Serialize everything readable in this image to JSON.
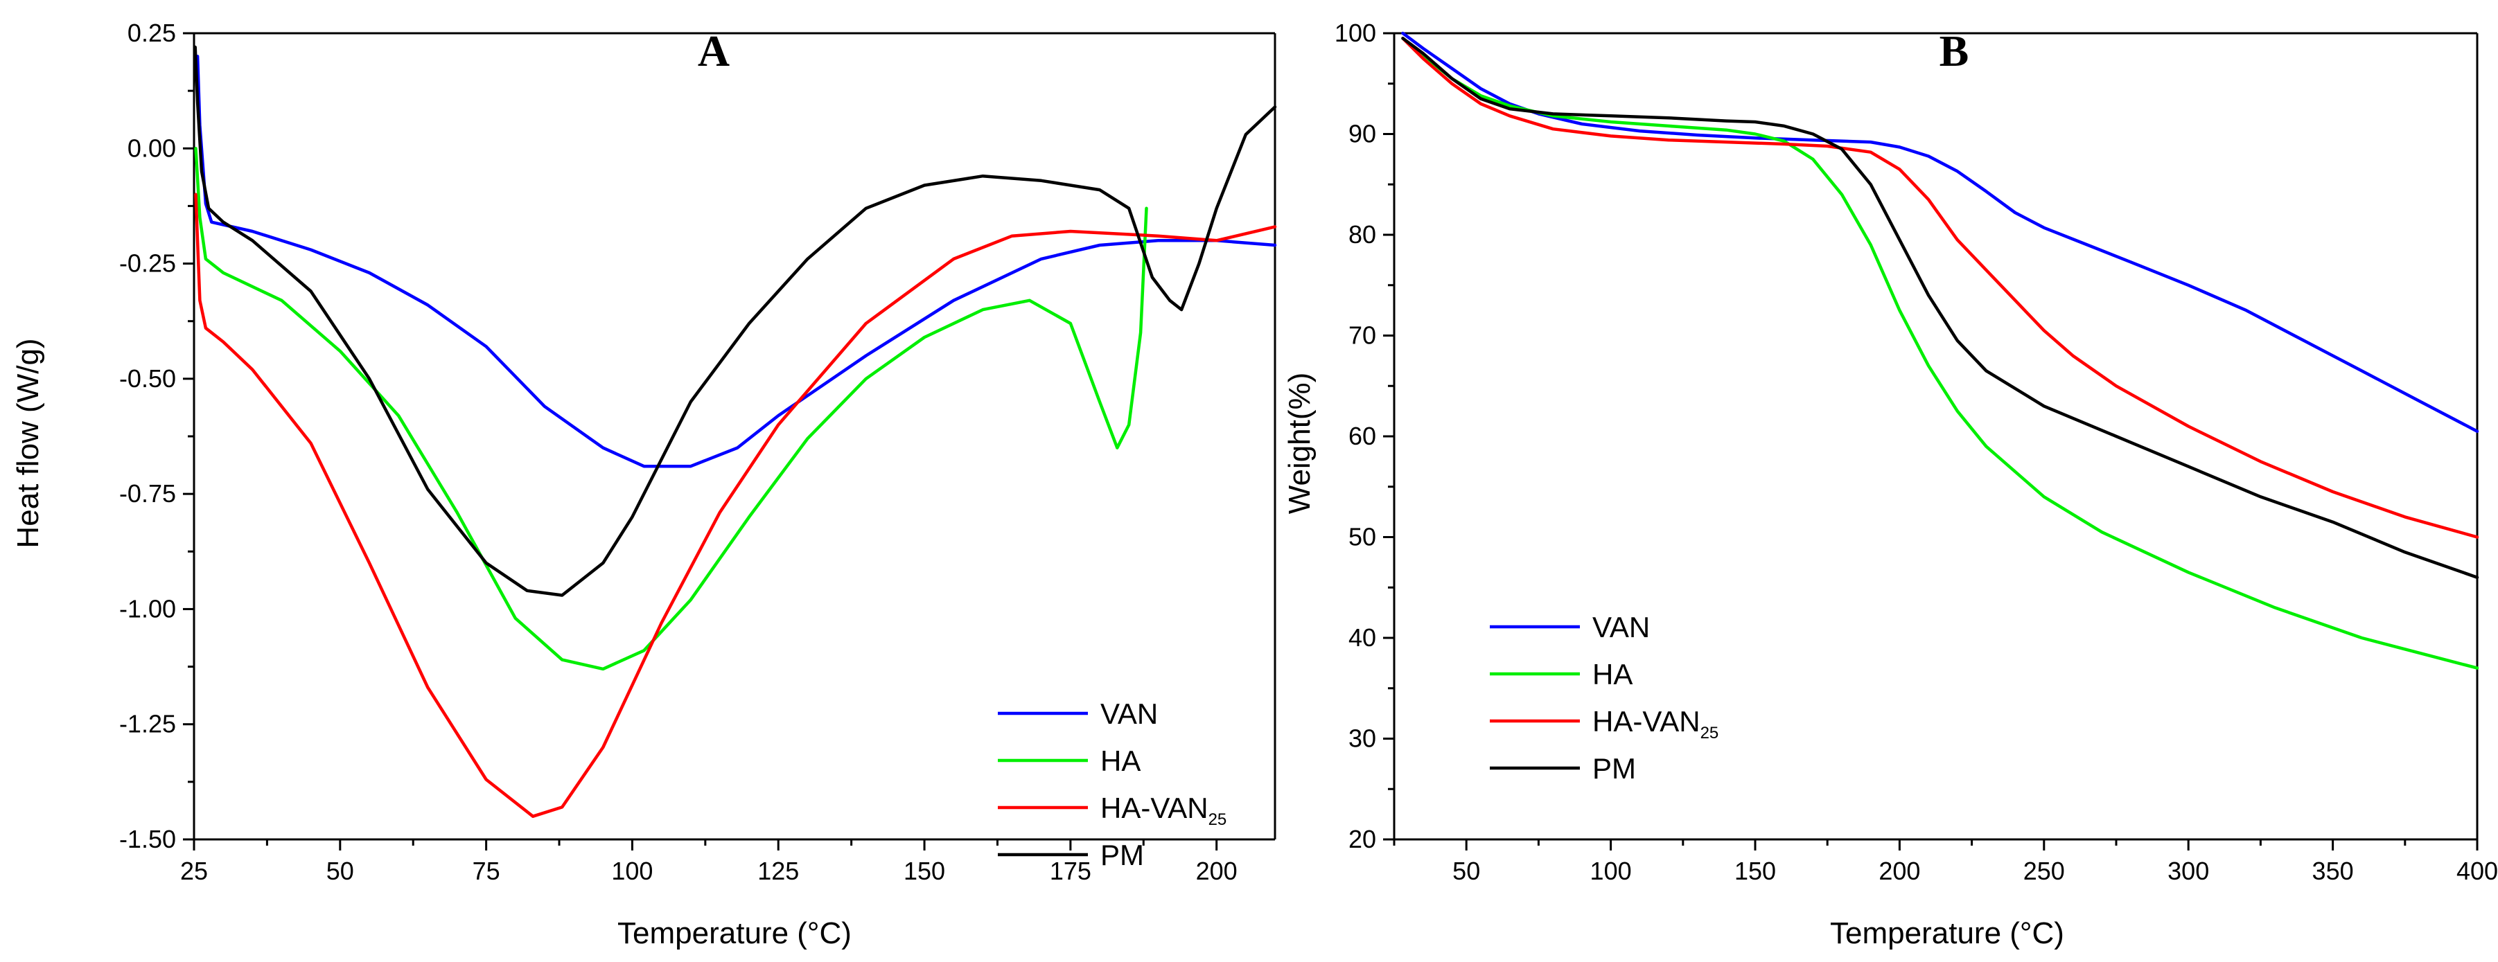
{
  "chart_data": [
    {
      "id": "A",
      "type": "line",
      "title": "A",
      "xlabel": "Temperature (°C)",
      "ylabel": "Heat flow (W/g)",
      "xlim": [
        25,
        210
      ],
      "ylim": [
        -1.5,
        0.25
      ],
      "xticks": [
        25,
        50,
        75,
        100,
        125,
        150,
        175,
        200
      ],
      "xtick_labels": [
        "25",
        "50",
        "75",
        "100",
        "125",
        "150",
        "175",
        "200"
      ],
      "yticks": [
        0.25,
        0.0,
        -0.25,
        -0.5,
        -0.75,
        -1.0,
        -1.25,
        -1.5
      ],
      "ytick_labels": [
        "0.25",
        "0.00",
        "-0.25",
        "-0.50",
        "-0.75",
        "-1.00",
        "-1.25",
        "-1.50"
      ],
      "legend": {
        "placement": "bottom-right"
      },
      "series": [
        {
          "name": "VAN",
          "color": "#0000ff",
          "points": [
            [
              25.6,
              0.2
            ],
            [
              26,
              0.05
            ],
            [
              27,
              -0.12
            ],
            [
              28,
              -0.16
            ],
            [
              35,
              -0.18
            ],
            [
              45,
              -0.22
            ],
            [
              55,
              -0.27
            ],
            [
              65,
              -0.34
            ],
            [
              75,
              -0.43
            ],
            [
              85,
              -0.56
            ],
            [
              95,
              -0.65
            ],
            [
              102,
              -0.69
            ],
            [
              110,
              -0.69
            ],
            [
              118,
              -0.65
            ],
            [
              125,
              -0.58
            ],
            [
              140,
              -0.45
            ],
            [
              155,
              -0.33
            ],
            [
              170,
              -0.24
            ],
            [
              180,
              -0.21
            ],
            [
              190,
              -0.2
            ],
            [
              200,
              -0.2
            ],
            [
              210,
              -0.21
            ]
          ]
        },
        {
          "name": "HA",
          "color": "#00ee00",
          "points": [
            [
              25.3,
              0.0
            ],
            [
              26,
              -0.15
            ],
            [
              27,
              -0.24
            ],
            [
              30,
              -0.27
            ],
            [
              40,
              -0.33
            ],
            [
              50,
              -0.44
            ],
            [
              60,
              -0.58
            ],
            [
              70,
              -0.79
            ],
            [
              80,
              -1.02
            ],
            [
              88,
              -1.11
            ],
            [
              95,
              -1.13
            ],
            [
              102,
              -1.09
            ],
            [
              110,
              -0.98
            ],
            [
              120,
              -0.8
            ],
            [
              130,
              -0.63
            ],
            [
              140,
              -0.5
            ],
            [
              150,
              -0.41
            ],
            [
              160,
              -0.35
            ],
            [
              168,
              -0.33
            ],
            [
              175,
              -0.38
            ],
            [
              180,
              -0.55
            ],
            [
              183,
              -0.65
            ],
            [
              185,
              -0.6
            ],
            [
              187,
              -0.4
            ],
            [
              188,
              -0.13
            ]
          ]
        },
        {
          "name": "HA-VAN",
          "name_subscript": "25",
          "color": "#ff0000",
          "points": [
            [
              25.3,
              -0.1
            ],
            [
              26,
              -0.33
            ],
            [
              27,
              -0.39
            ],
            [
              30,
              -0.42
            ],
            [
              35,
              -0.48
            ],
            [
              45,
              -0.64
            ],
            [
              55,
              -0.9
            ],
            [
              65,
              -1.17
            ],
            [
              75,
              -1.37
            ],
            [
              83,
              -1.45
            ],
            [
              88,
              -1.43
            ],
            [
              95,
              -1.3
            ],
            [
              105,
              -1.03
            ],
            [
              115,
              -0.79
            ],
            [
              125,
              -0.6
            ],
            [
              140,
              -0.38
            ],
            [
              155,
              -0.24
            ],
            [
              165,
              -0.19
            ],
            [
              175,
              -0.18
            ],
            [
              190,
              -0.19
            ],
            [
              200,
              -0.2
            ],
            [
              210,
              -0.17
            ]
          ]
        },
        {
          "name": "PM",
          "color": "#000000",
          "points": [
            [
              25.2,
              0.22
            ],
            [
              25.6,
              0.1
            ],
            [
              26.3,
              -0.05
            ],
            [
              27.5,
              -0.13
            ],
            [
              30,
              -0.16
            ],
            [
              35,
              -0.2
            ],
            [
              45,
              -0.31
            ],
            [
              55,
              -0.5
            ],
            [
              65,
              -0.74
            ],
            [
              75,
              -0.9
            ],
            [
              82,
              -0.96
            ],
            [
              88,
              -0.97
            ],
            [
              95,
              -0.9
            ],
            [
              100,
              -0.8
            ],
            [
              110,
              -0.55
            ],
            [
              120,
              -0.38
            ],
            [
              130,
              -0.24
            ],
            [
              140,
              -0.13
            ],
            [
              150,
              -0.08
            ],
            [
              160,
              -0.06
            ],
            [
              170,
              -0.07
            ],
            [
              180,
              -0.09
            ],
            [
              185,
              -0.13
            ],
            [
              189,
              -0.28
            ],
            [
              192,
              -0.33
            ],
            [
              194,
              -0.35
            ],
            [
              197,
              -0.25
            ],
            [
              200,
              -0.13
            ],
            [
              205,
              0.03
            ],
            [
              210,
              0.09
            ]
          ]
        }
      ]
    },
    {
      "id": "B",
      "type": "line",
      "title": "B",
      "xlabel": "Temperature (°C)",
      "ylabel": "Weight(%)",
      "xlim": [
        25,
        400
      ],
      "ylim": [
        20,
        100
      ],
      "xticks": [
        50,
        100,
        150,
        200,
        250,
        300,
        350,
        400
      ],
      "xtick_labels": [
        "50",
        "100",
        "150",
        "200",
        "250",
        "300",
        "350",
        "400"
      ],
      "yticks": [
        20,
        30,
        40,
        50,
        60,
        70,
        80,
        90,
        100
      ],
      "ytick_labels": [
        "20",
        "30",
        "40",
        "50",
        "60",
        "70",
        "80",
        "90",
        "100"
      ],
      "legend": {
        "placement": "bottom-left"
      },
      "series": [
        {
          "name": "VAN",
          "color": "#0000ff",
          "points": [
            [
              28,
              100
            ],
            [
              35,
              98.5
            ],
            [
              45,
              96.5
            ],
            [
              55,
              94.5
            ],
            [
              65,
              93
            ],
            [
              75,
              92
            ],
            [
              90,
              91
            ],
            [
              110,
              90.3
            ],
            [
              130,
              89.9
            ],
            [
              150,
              89.6
            ],
            [
              170,
              89.4
            ],
            [
              190,
              89.2
            ],
            [
              200,
              88.7
            ],
            [
              210,
              87.8
            ],
            [
              220,
              86.3
            ],
            [
              230,
              84.3
            ],
            [
              240,
              82.2
            ],
            [
              250,
              80.7
            ],
            [
              265,
              79
            ],
            [
              280,
              77.3
            ],
            [
              300,
              75
            ],
            [
              320,
              72.5
            ],
            [
              340,
              69.5
            ],
            [
              360,
              66.5
            ],
            [
              380,
              63.5
            ],
            [
              400,
              60.5
            ]
          ]
        },
        {
          "name": "HA",
          "color": "#00ee00",
          "points": [
            [
              28,
              99.5
            ],
            [
              35,
              97.8
            ],
            [
              45,
              95.5
            ],
            [
              55,
              93.8
            ],
            [
              65,
              92.8
            ],
            [
              80,
              91.8
            ],
            [
              100,
              91.2
            ],
            [
              120,
              90.8
            ],
            [
              140,
              90.4
            ],
            [
              150,
              90
            ],
            [
              160,
              89.3
            ],
            [
              170,
              87.5
            ],
            [
              180,
              84
            ],
            [
              190,
              79
            ],
            [
              200,
              72.5
            ],
            [
              210,
              67
            ],
            [
              220,
              62.5
            ],
            [
              230,
              59
            ],
            [
              250,
              54
            ],
            [
              270,
              50.5
            ],
            [
              300,
              46.5
            ],
            [
              330,
              43
            ],
            [
              360,
              40
            ],
            [
              380,
              38.5
            ],
            [
              400,
              37
            ]
          ]
        },
        {
          "name": "HA-VAN",
          "name_subscript": "25",
          "color": "#ff0000",
          "points": [
            [
              28,
              99.5
            ],
            [
              35,
              97.5
            ],
            [
              45,
              95
            ],
            [
              55,
              93
            ],
            [
              65,
              91.8
            ],
            [
              80,
              90.5
            ],
            [
              100,
              89.8
            ],
            [
              120,
              89.4
            ],
            [
              140,
              89.2
            ],
            [
              160,
              89
            ],
            [
              175,
              88.8
            ],
            [
              190,
              88.2
            ],
            [
              200,
              86.5
            ],
            [
              210,
              83.5
            ],
            [
              220,
              79.5
            ],
            [
              230,
              76.5
            ],
            [
              240,
              73.5
            ],
            [
              250,
              70.5
            ],
            [
              260,
              68
            ],
            [
              275,
              65
            ],
            [
              300,
              61
            ],
            [
              325,
              57.5
            ],
            [
              350,
              54.5
            ],
            [
              375,
              52
            ],
            [
              400,
              50
            ]
          ]
        },
        {
          "name": "PM",
          "color": "#000000",
          "points": [
            [
              28,
              99.5
            ],
            [
              35,
              98
            ],
            [
              45,
              95.5
            ],
            [
              55,
              93.5
            ],
            [
              65,
              92.5
            ],
            [
              80,
              92
            ],
            [
              100,
              91.8
            ],
            [
              120,
              91.6
            ],
            [
              140,
              91.3
            ],
            [
              150,
              91.2
            ],
            [
              160,
              90.8
            ],
            [
              170,
              90
            ],
            [
              180,
              88.5
            ],
            [
              190,
              85
            ],
            [
              200,
              79.5
            ],
            [
              210,
              74
            ],
            [
              220,
              69.5
            ],
            [
              230,
              66.5
            ],
            [
              250,
              63
            ],
            [
              275,
              60
            ],
            [
              300,
              57
            ],
            [
              325,
              54
            ],
            [
              350,
              51.5
            ],
            [
              375,
              48.5
            ],
            [
              400,
              46
            ]
          ]
        }
      ]
    }
  ]
}
